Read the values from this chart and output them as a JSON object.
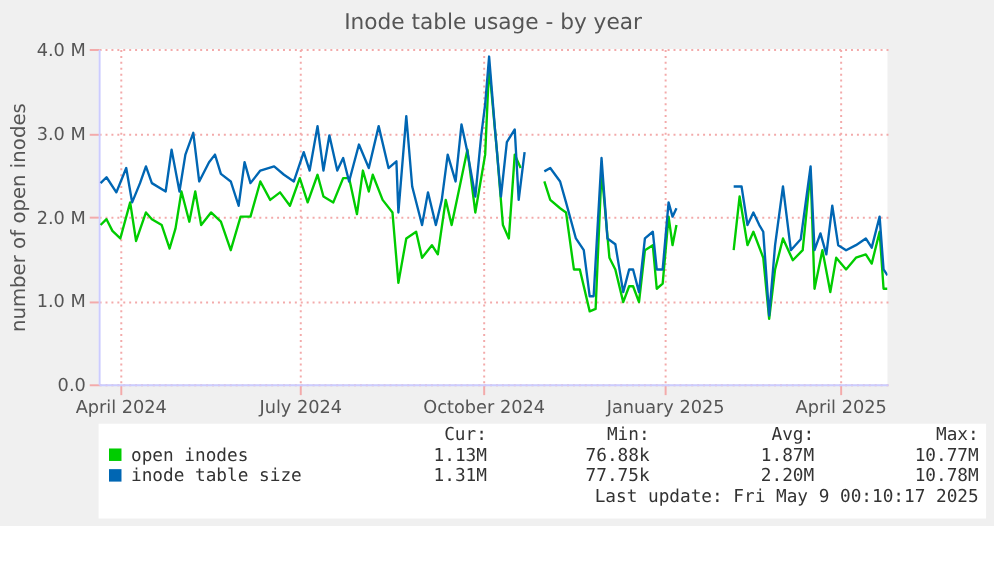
{
  "chart_data": {
    "type": "line",
    "title": "Inode table usage - by year",
    "ylabel": "number of open inodes",
    "xlim": [
      "2024-04-04",
      "2025-05-09"
    ],
    "xticks": [
      {
        "value": "2024-04-15",
        "label": "April 2024"
      },
      {
        "value": "2024-07-15",
        "label": "July 2024"
      },
      {
        "value": "2024-10-16",
        "label": "October 2024"
      },
      {
        "value": "2025-01-16",
        "label": "January 2025"
      },
      {
        "value": "2025-04-15",
        "label": "April 2025"
      }
    ],
    "ylim": [
      0,
      4
    ],
    "yticks": [
      {
        "value": 0,
        "label": "0.0"
      },
      {
        "value": 1,
        "label": "1.0 M"
      },
      {
        "value": 2,
        "label": "2.0 M"
      },
      {
        "value": 3,
        "label": "3.0 M"
      },
      {
        "value": 4,
        "label": "4.0 M"
      }
    ],
    "grid": true,
    "legend": "bottom",
    "marker": "none",
    "line_style": "solid",
    "series": [
      {
        "name": "open inodes",
        "color": "#00cc00",
        "x": [
          "2024-04-05",
          "2024-04-08",
          "2024-04-11",
          "2024-04-15",
          "2024-04-20",
          "2024-04-23",
          "2024-04-28",
          "2024-05-01",
          "2024-05-06",
          "2024-05-10",
          "2024-05-13",
          "2024-05-16",
          "2024-05-20",
          "2024-05-23",
          "2024-05-26",
          "2024-05-31",
          "2024-06-05",
          "2024-06-10",
          "2024-06-15",
          "2024-06-20",
          "2024-06-25",
          "2024-06-30",
          "2024-07-05",
          "2024-07-10",
          "2024-07-15",
          "2024-07-19",
          "2024-07-24",
          "2024-07-27",
          "2024-08-01",
          "2024-08-06",
          "2024-08-09",
          "2024-08-13",
          "2024-08-16",
          "2024-08-19",
          "2024-08-21",
          "2024-08-26",
          "2024-08-31",
          "2024-09-03",
          "2024-09-07",
          "2024-09-12",
          "2024-09-15",
          "2024-09-20",
          "2024-09-23",
          "2024-09-27",
          "2024-09-30",
          "2024-10-05",
          "2024-10-08",
          "2024-10-12",
          "2024-10-17",
          "2024-10-19",
          "2024-10-23",
          "2024-10-26",
          "2024-10-29",
          "2024-11-01",
          "2024-11-04",
          "2024-11-10",
          "2024-11-16",
          "2024-11-19",
          "2024-11-24",
          "2024-11-27",
          "2024-12-01",
          "2024-12-04",
          "2024-12-09",
          "2024-12-12",
          "2024-12-15",
          "2024-12-19",
          "2024-12-22",
          "2024-12-26",
          "2024-12-29",
          "2024-12-31",
          "2025-01-03",
          "2025-01-06",
          "2025-01-10",
          "2025-01-12",
          "2025-01-15",
          "2025-01-18",
          "2025-01-20",
          "2025-01-22",
          "2025-02-05",
          "2025-02-20",
          "2025-02-23",
          "2025-02-27",
          "2025-03-02",
          "2025-03-07",
          "2025-03-10",
          "2025-03-13",
          "2025-03-17",
          "2025-03-22",
          "2025-03-27",
          "2025-03-31",
          "2025-04-02",
          "2025-04-06",
          "2025-04-10",
          "2025-04-13",
          "2025-04-18",
          "2025-04-23",
          "2025-04-28",
          "2025-05-01",
          "2025-05-05",
          "2025-05-07",
          "2025-05-09"
        ],
        "values": [
          1.9,
          1.97,
          1.83,
          1.74,
          2.17,
          1.71,
          2.05,
          1.97,
          1.9,
          1.62,
          1.86,
          2.3,
          1.94,
          2.3,
          1.9,
          2.05,
          1.94,
          1.6,
          2.0,
          2.0,
          2.42,
          2.2,
          2.29,
          2.13,
          2.46,
          2.17,
          2.5,
          2.24,
          2.17,
          2.46,
          2.46,
          2.03,
          2.55,
          2.3,
          2.5,
          2.2,
          2.05,
          1.21,
          1.74,
          1.82,
          1.51,
          1.66,
          1.55,
          2.2,
          1.9,
          2.46,
          2.8,
          2.05,
          2.74,
          3.8,
          2.77,
          1.9,
          1.74,
          2.74,
          2.58,
          null,
          2.42,
          2.2,
          2.1,
          2.05,
          1.37,
          1.37,
          0.87,
          0.9,
          2.55,
          1.51,
          1.37,
          0.98,
          1.17,
          1.17,
          0.98,
          1.6,
          1.66,
          1.14,
          1.2,
          2.0,
          1.66,
          1.9,
          null,
          1.6,
          2.24,
          1.66,
          1.82,
          1.51,
          0.78,
          1.37,
          1.74,
          1.48,
          1.6,
          2.54,
          1.14,
          1.6,
          1.1,
          1.51,
          1.37,
          1.51,
          1.55,
          1.44,
          1.82,
          1.14,
          1.14
        ]
      },
      {
        "name": "inode table size",
        "color": "#0066b3",
        "x": [
          "2024-04-05",
          "2024-04-08",
          "2024-04-13",
          "2024-04-18",
          "2024-04-21",
          "2024-04-25",
          "2024-04-28",
          "2024-05-01",
          "2024-05-08",
          "2024-05-11",
          "2024-05-15",
          "2024-05-18",
          "2024-05-22",
          "2024-05-25",
          "2024-05-30",
          "2024-06-02",
          "2024-06-05",
          "2024-06-10",
          "2024-06-14",
          "2024-06-17",
          "2024-06-20",
          "2024-06-25",
          "2024-07-02",
          "2024-07-07",
          "2024-07-12",
          "2024-07-17",
          "2024-07-20",
          "2024-07-24",
          "2024-07-27",
          "2024-07-30",
          "2024-08-03",
          "2024-08-06",
          "2024-08-09",
          "2024-08-14",
          "2024-08-19",
          "2024-08-24",
          "2024-08-29",
          "2024-09-02",
          "2024-09-03",
          "2024-09-07",
          "2024-09-10",
          "2024-09-15",
          "2024-09-18",
          "2024-09-22",
          "2024-09-25",
          "2024-09-28",
          "2024-10-02",
          "2024-10-05",
          "2024-10-08",
          "2024-10-12",
          "2024-10-15",
          "2024-10-17",
          "2024-10-19",
          "2024-10-22",
          "2024-10-25",
          "2024-10-28",
          "2024-11-01",
          "2024-11-03",
          "2024-11-06",
          "2024-11-10",
          "2024-11-16",
          "2024-11-19",
          "2024-11-24",
          "2024-11-27",
          "2024-12-02",
          "2024-12-06",
          "2024-12-09",
          "2024-12-11",
          "2024-12-15",
          "2024-12-18",
          "2024-12-22",
          "2024-12-26",
          "2024-12-29",
          "2024-12-31",
          "2025-01-03",
          "2025-01-06",
          "2025-01-10",
          "2025-01-12",
          "2025-01-15",
          "2025-01-18",
          "2025-01-20",
          "2025-01-22",
          "2025-02-05",
          "2025-02-20",
          "2025-02-24",
          "2025-02-27",
          "2025-03-02",
          "2025-03-05",
          "2025-03-07",
          "2025-03-10",
          "2025-03-13",
          "2025-03-17",
          "2025-03-21",
          "2025-03-26",
          "2025-03-31",
          "2025-04-02",
          "2025-04-05",
          "2025-04-08",
          "2025-04-11",
          "2025-04-14",
          "2025-04-18",
          "2025-04-23",
          "2025-04-28",
          "2025-05-01",
          "2025-05-05",
          "2025-05-07",
          "2025-05-09"
        ],
        "values": [
          2.4,
          2.47,
          2.29,
          2.58,
          2.17,
          2.4,
          2.6,
          2.4,
          2.3,
          2.8,
          2.3,
          2.74,
          3.0,
          2.42,
          2.65,
          2.74,
          2.51,
          2.42,
          2.13,
          2.65,
          2.4,
          2.55,
          2.6,
          2.5,
          2.42,
          2.77,
          2.55,
          3.08,
          2.55,
          2.97,
          2.55,
          2.7,
          2.42,
          2.86,
          2.58,
          3.08,
          2.58,
          2.66,
          2.05,
          3.2,
          2.36,
          1.9,
          2.29,
          1.9,
          2.2,
          2.74,
          2.42,
          3.1,
          2.77,
          2.24,
          2.97,
          3.34,
          3.91,
          3.04,
          2.24,
          2.89,
          3.04,
          2.2,
          2.77,
          null,
          2.54,
          2.58,
          2.42,
          2.17,
          1.74,
          1.6,
          1.05,
          1.05,
          2.7,
          1.74,
          1.67,
          1.1,
          1.37,
          1.37,
          1.1,
          1.74,
          1.82,
          1.37,
          1.37,
          2.17,
          2.0,
          2.1,
          null,
          2.36,
          2.36,
          1.9,
          2.05,
          1.9,
          1.82,
          0.82,
          1.66,
          2.36,
          1.6,
          1.73,
          2.6,
          1.6,
          1.8,
          1.55,
          2.13,
          1.66,
          1.6,
          1.66,
          1.74,
          1.63,
          2.0,
          1.37,
          1.3
        ]
      }
    ],
    "annotations": [
      "Cur:",
      "Min:",
      "Avg:",
      "Max:",
      "1.13M",
      "76.88k",
      "1.87M",
      "10.77M",
      "1.31M",
      "77.75k",
      "2.20M",
      "10.78M",
      "Last update: Fri May  9 00:10:17 2025"
    ]
  }
}
